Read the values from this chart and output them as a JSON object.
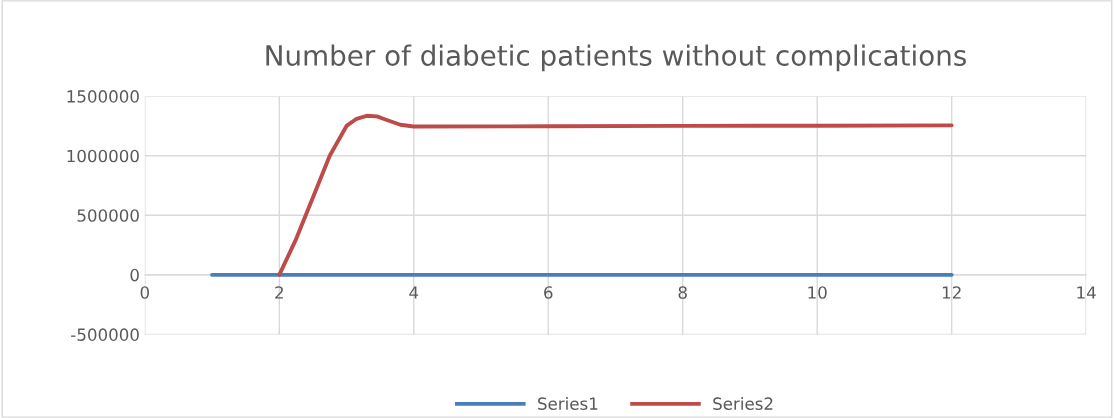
{
  "chart_data": {
    "type": "line",
    "title": "Number of diabetic patients without complications",
    "xlim": [
      0,
      14
    ],
    "xticks": [
      0,
      2,
      4,
      6,
      8,
      10,
      12,
      14
    ],
    "ylim": [
      -500000,
      1500000
    ],
    "yticks": [
      -500000,
      0,
      500000,
      1000000,
      1500000
    ],
    "grid": true,
    "legend": "bottom",
    "marker": "none",
    "line_style": "solid",
    "series": [
      {
        "name": "Series1",
        "color": "#4a7ebb",
        "x": [
          1,
          2,
          3,
          4,
          5,
          6,
          7,
          8,
          9,
          10,
          11,
          12
        ],
        "values": [
          0,
          0,
          0,
          0,
          0,
          0,
          0,
          0,
          0,
          0,
          0,
          0
        ]
      },
      {
        "name": "Series2",
        "color": "#be4b48",
        "x": [
          2,
          2.25,
          2.5,
          2.75,
          3,
          3.15,
          3.3,
          3.45,
          3.6,
          3.8,
          4,
          6,
          8,
          10,
          12
        ],
        "values": [
          0,
          300000,
          650000,
          1000000,
          1250000,
          1310000,
          1335000,
          1330000,
          1300000,
          1260000,
          1245000,
          1247000,
          1250000,
          1252000,
          1255000
        ]
      }
    ]
  }
}
